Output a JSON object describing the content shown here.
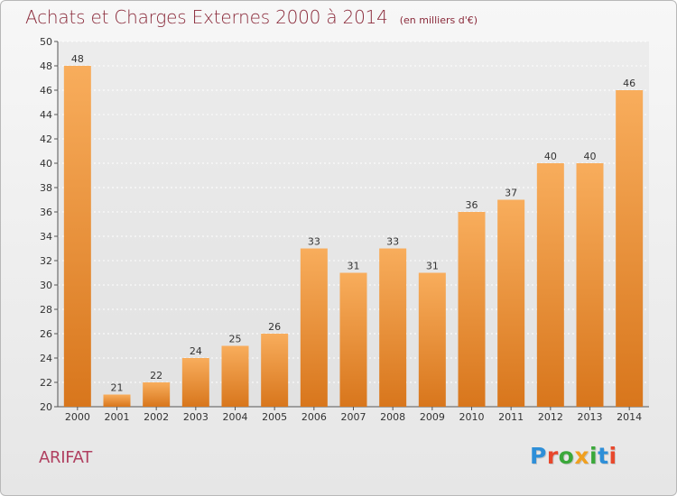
{
  "header": {
    "title": "Achats et Charges Externes 2000 à 2014",
    "subtitle": "(en milliers d'€)"
  },
  "footer": {
    "commune": "ARIFAT",
    "logo_text": "Proxiti",
    "logo_colors": [
      "#2e8fd8",
      "#e8482c",
      "#3aa83a",
      "#f0a020",
      "#3aa83a",
      "#2e8fd8",
      "#e8482c"
    ]
  },
  "chart_data": {
    "type": "bar",
    "categories": [
      "2000",
      "2001",
      "2002",
      "2003",
      "2004",
      "2005",
      "2006",
      "2007",
      "2008",
      "2009",
      "2010",
      "2011",
      "2012",
      "2013",
      "2014"
    ],
    "values": [
      48,
      21,
      22,
      24,
      25,
      26,
      33,
      31,
      33,
      31,
      36,
      37,
      40,
      40,
      46
    ],
    "ylim": [
      20,
      50
    ],
    "ytick_step": 2,
    "yticks": [
      "20",
      "22",
      "24",
      "26",
      "28",
      "30",
      "32",
      "34",
      "36",
      "38",
      "40",
      "42",
      "44",
      "46",
      "48",
      "50"
    ],
    "grid": true,
    "bar_color": "#f0922e",
    "bar_color_light": "#f8ad5c",
    "bar_color_dark": "#d8761c"
  }
}
